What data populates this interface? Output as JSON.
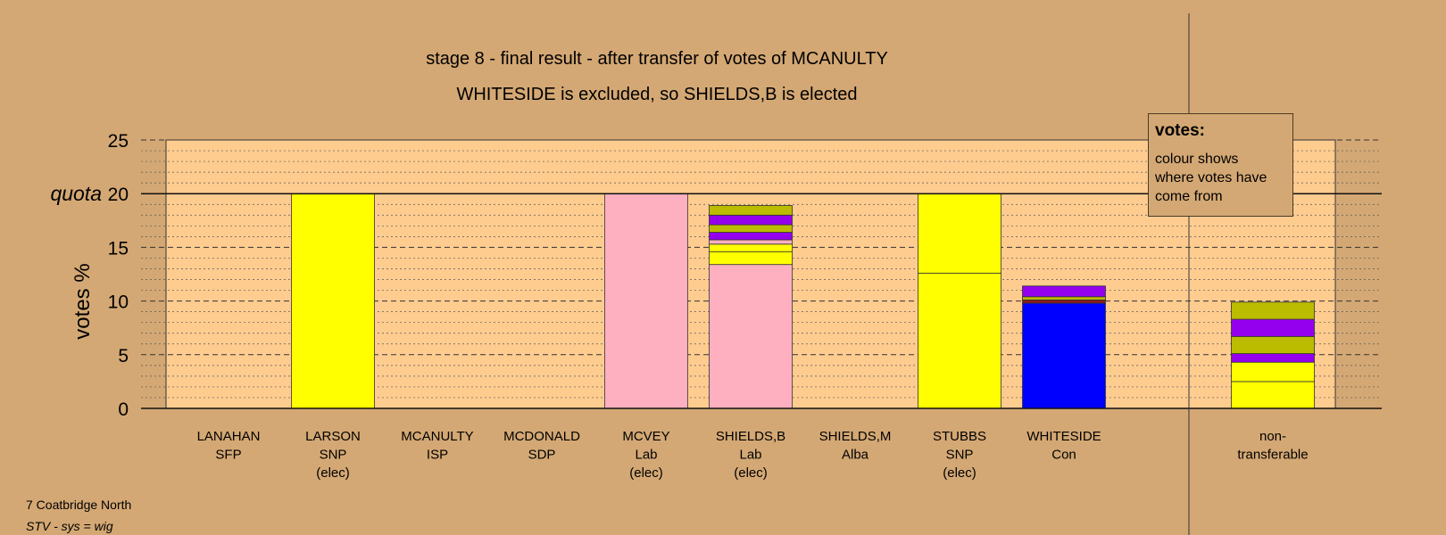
{
  "chart_data": {
    "type": "bar",
    "stacked": true,
    "title": "stage 8 - final result - after transfer of votes of MCANULTY",
    "subtitle": "WHITESIDE is excluded, so SHIELDS,B is elected",
    "ylabel": "votes %",
    "quota_label": "quota",
    "quota": 20,
    "ylim": [
      0,
      25
    ],
    "yticks": [
      0,
      5,
      10,
      15,
      20,
      25
    ],
    "grid": true,
    "categories": [
      {
        "name": "LANAHAN",
        "party": "SFP",
        "status": ""
      },
      {
        "name": "LARSON",
        "party": "SNP",
        "status": "(elec)"
      },
      {
        "name": "MCANULTY",
        "party": "ISP",
        "status": ""
      },
      {
        "name": "MCDONALD",
        "party": "SDP",
        "status": ""
      },
      {
        "name": "MCVEY",
        "party": "Lab",
        "status": "(elec)"
      },
      {
        "name": "SHIELDS,B",
        "party": "Lab",
        "status": "(elec)"
      },
      {
        "name": "SHIELDS,M",
        "party": "Alba",
        "status": ""
      },
      {
        "name": "STUBBS",
        "party": "SNP",
        "status": "(elec)"
      },
      {
        "name": "WHITESIDE",
        "party": "Con",
        "status": ""
      }
    ],
    "nontransferable": {
      "label_line1": "non-",
      "label_line2": "transferable"
    },
    "segments": [
      [],
      [
        {
          "value": 20.0,
          "color": "#ffff00"
        }
      ],
      [],
      [],
      [
        {
          "value": 20.0,
          "color": "#ffb0c0"
        }
      ],
      [
        {
          "value": 13.4,
          "color": "#ffb0c0"
        },
        {
          "value": 1.2,
          "color": "#ffff00"
        },
        {
          "value": 0.7,
          "color": "#ffff00"
        },
        {
          "value": 0.4,
          "color": "#ffb0c0"
        },
        {
          "value": 0.7,
          "color": "#9400ee"
        },
        {
          "value": 0.7,
          "color": "#bbbb00"
        },
        {
          "value": 0.9,
          "color": "#9400ee"
        },
        {
          "value": 0.9,
          "color": "#bbbb00"
        }
      ],
      [],
      [
        {
          "value": 12.6,
          "color": "#ffff00"
        },
        {
          "value": 7.4,
          "color": "#ffff00"
        }
      ],
      [
        {
          "value": 9.8,
          "color": "#0000ff"
        },
        {
          "value": 0.3,
          "color": "#8b1a1a"
        },
        {
          "value": 0.3,
          "color": "#bbbb00"
        },
        {
          "value": 1.0,
          "color": "#9400ee"
        }
      ]
    ],
    "nontransferable_segments": [
      {
        "value": 2.5,
        "color": "#ffff00"
      },
      {
        "value": 1.8,
        "color": "#ffff00"
      },
      {
        "value": 0.8,
        "color": "#9400ee"
      },
      {
        "value": 1.6,
        "color": "#bbbb00"
      },
      {
        "value": 1.6,
        "color": "#9400ee"
      },
      {
        "value": 1.6,
        "color": "#bbbb00"
      }
    ]
  },
  "legend": {
    "title": "votes:",
    "text": "colour shows where votes have come from"
  },
  "footer": {
    "place": "7 Coatbridge North",
    "system": "STV - sys = wig"
  }
}
